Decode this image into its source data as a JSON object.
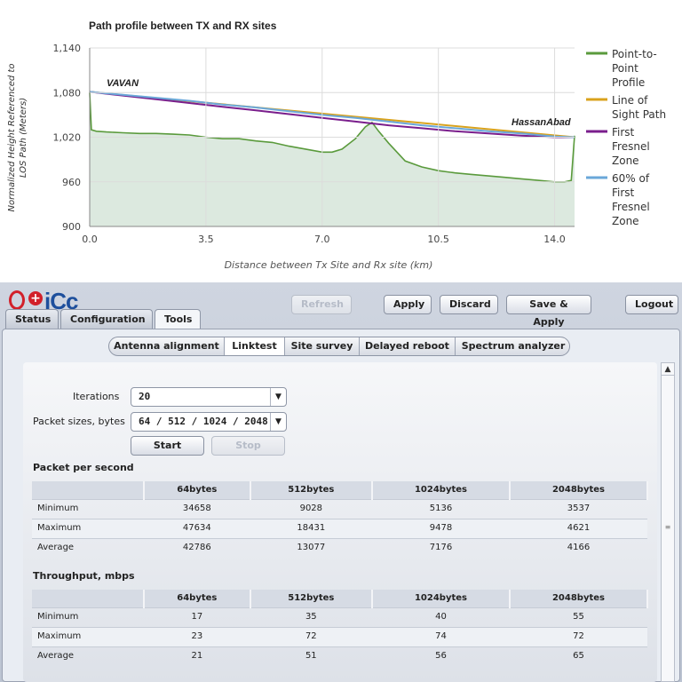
{
  "chart_data": {
    "type": "line",
    "title": "Path profile between TX and RX sites",
    "xlabel": "Distance between Tx Site and Rx site (km)",
    "ylabel": "Normalized Height Referenced to LOS Path (Meters)",
    "xlim": [
      0,
      14.6
    ],
    "ylim": [
      900,
      1140
    ],
    "x_ticks": [
      "0.0",
      "3.5",
      "7.0",
      "10.5",
      "14.0"
    ],
    "y_ticks": [
      "1,140",
      "1,080",
      "1,020",
      "960",
      "900"
    ],
    "grid": true,
    "legend_position": "right",
    "annotations": [
      "VAVAN",
      "HassanAbad"
    ],
    "series": [
      {
        "name": "Point-to-Point Profile",
        "color": "#5a9a3c",
        "fill": "#dce9df",
        "x": [
          0,
          0.05,
          0.2,
          0.5,
          1.0,
          1.5,
          2.0,
          2.5,
          3.0,
          3.5,
          4.0,
          4.5,
          5.0,
          5.5,
          6.0,
          6.5,
          7.0,
          7.3,
          7.6,
          8.0,
          8.3,
          8.5,
          8.7,
          9.0,
          9.5,
          10.0,
          10.5,
          11.0,
          11.5,
          12.0,
          12.5,
          13.0,
          13.5,
          14.0,
          14.3,
          14.5,
          14.6
        ],
        "values": [
          1080,
          1030,
          1028,
          1027,
          1026,
          1025,
          1025,
          1024,
          1023,
          1020,
          1018,
          1018,
          1015,
          1013,
          1008,
          1004,
          1000,
          1000,
          1004,
          1018,
          1034,
          1040,
          1028,
          1012,
          988,
          980,
          975,
          972,
          970,
          968,
          966,
          964,
          962,
          960,
          960,
          962,
          1022
        ]
      },
      {
        "name": "Line of Sight Path",
        "color": "#d9a21c",
        "x": [
          0,
          14.6
        ],
        "values": [
          1081,
          1020
        ]
      },
      {
        "name": "First Fresnel Zone",
        "color": "#7a1e8c",
        "x": [
          0,
          1.0,
          2.0,
          3.0,
          4.0,
          5.0,
          6.0,
          7.0,
          8.0,
          9.0,
          10.0,
          11.0,
          12.0,
          13.0,
          14.0,
          14.6
        ],
        "values": [
          1081,
          1076,
          1071,
          1066,
          1061,
          1056,
          1051,
          1046,
          1041,
          1036,
          1032,
          1028,
          1025,
          1022,
          1020,
          1020
        ]
      },
      {
        "name": "60% of First Fresnel Zone",
        "color": "#6aa7d9",
        "x": [
          0,
          1.0,
          2.0,
          3.0,
          4.0,
          5.0,
          6.0,
          7.0,
          8.0,
          9.0,
          10.0,
          11.0,
          12.0,
          13.0,
          14.0,
          14.6
        ],
        "values": [
          1081,
          1077,
          1073,
          1069,
          1064,
          1060,
          1055,
          1050,
          1046,
          1041,
          1036,
          1032,
          1028,
          1025,
          1021,
          1020
        ]
      }
    ]
  },
  "legend": [
    {
      "lines": [
        "Point-to-",
        "Point",
        "Profile"
      ],
      "color": "#5a9a3c"
    },
    {
      "lines": [
        "Line of",
        "Sight Path"
      ],
      "color": "#d9a21c"
    },
    {
      "lines": [
        "First",
        "Fresnel",
        "Zone"
      ],
      "color": "#7a1e8c"
    },
    {
      "lines": [
        "60% of",
        "First",
        "Fresnel",
        "Zone"
      ],
      "color": "#6aa7d9"
    }
  ],
  "ylabel_lines": [
    "Normalized Height Referenced to",
    "LOS Path (Meters)"
  ],
  "app": {
    "logo_text": "iCc",
    "logo_plus": "+",
    "tabs": [
      "Status",
      "Configuration",
      "Tools"
    ],
    "active_tab": "Tools",
    "toolbar": {
      "refresh": "Refresh",
      "apply": "Apply",
      "discard": "Discard",
      "save_apply": "Save & Apply",
      "logout": "Logout"
    },
    "subtabs": [
      "Antenna alignment",
      "Linktest",
      "Site survey",
      "Delayed reboot",
      "Spectrum analyzer"
    ],
    "active_subtab": "Linktest",
    "form": {
      "iterations_label": "Iterations",
      "iterations_value": "20",
      "packet_sizes_label": "Packet sizes, bytes",
      "packet_sizes_value": "64 / 512 / 1024 / 2048",
      "start": "Start",
      "stop": "Stop"
    },
    "pps": {
      "title": "Packet per second",
      "headers": [
        "",
        "64bytes",
        "512bytes",
        "1024bytes",
        "2048bytes"
      ],
      "rows": [
        [
          "Minimum",
          "34658",
          "9028",
          "5136",
          "3537"
        ],
        [
          "Maximum",
          "47634",
          "18431",
          "9478",
          "4621"
        ],
        [
          "Average",
          "42786",
          "13077",
          "7176",
          "4166"
        ]
      ]
    },
    "throughput": {
      "title": "Throughput, mbps",
      "headers": [
        "",
        "64bytes",
        "512bytes",
        "1024bytes",
        "2048bytes"
      ],
      "rows": [
        [
          "Minimum",
          "17",
          "35",
          "40",
          "55"
        ],
        [
          "Maximum",
          "23",
          "72",
          "74",
          "72"
        ],
        [
          "Average",
          "21",
          "51",
          "56",
          "65"
        ]
      ]
    },
    "scroll_up_glyph": "▲",
    "scroll_grip_glyph": "≡",
    "dropdown_glyph": "▼"
  }
}
